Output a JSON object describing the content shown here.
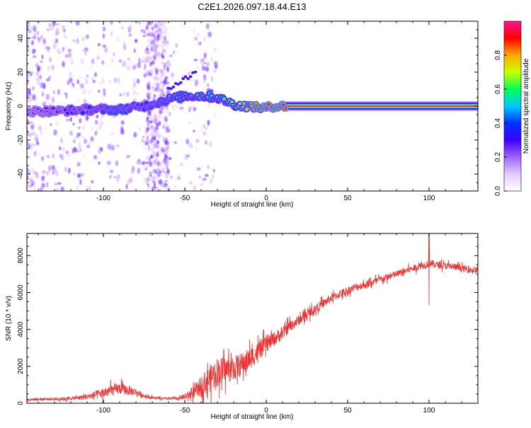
{
  "chart_data": [
    {
      "type": "heatmap",
      "title": "C2E1.2026.097.18.44.E13",
      "xlabel": "Height of straight line (km)",
      "ylabel": "Frequency (Hz)",
      "xlim": [
        -147,
        130
      ],
      "ylim": [
        -50,
        50
      ],
      "x_ticks": [
        -100,
        -50,
        0,
        50,
        100
      ],
      "x_tick_labels": [
        "-100",
        "-50",
        "0",
        "50",
        "100"
      ],
      "y_ticks": [
        -40,
        -20,
        0,
        20,
        40
      ],
      "y_tick_labels": [
        "-40",
        "-20",
        "0",
        "20",
        "40"
      ],
      "colorbar": {
        "label": "Normalized spectral amplitude",
        "range": [
          0,
          1
        ],
        "ticks": [
          0,
          0.2,
          0.4,
          0.6,
          0.8
        ],
        "tick_labels": [
          "0.0",
          "0.2",
          "0.4",
          "0.6",
          "0.8"
        ],
        "colors": [
          "#ffffff",
          "#e3c9ff",
          "#9f63ff",
          "#3d00ff",
          "#0033ff",
          "#00c8ff",
          "#00ff55",
          "#c8ff00",
          "#ffaa00",
          "#ff0000",
          "#ff1493"
        ]
      },
      "ridge": {
        "description": "Dominant spectral ridge: frequency offset vs height",
        "x": [
          -147,
          -130,
          -110,
          -90,
          -75,
          -60,
          -50,
          -40,
          -30,
          -25,
          -20,
          -15,
          -10,
          -5,
          0,
          5,
          10,
          20,
          50,
          100,
          130
        ],
        "freq": [
          -3,
          -3,
          -2,
          -2,
          0,
          4,
          6,
          6,
          5,
          3,
          1,
          0,
          0,
          -1,
          -1,
          0,
          0,
          0,
          0,
          0,
          0
        ],
        "amplitude": [
          0.25,
          0.3,
          0.4,
          0.45,
          0.4,
          0.5,
          0.55,
          0.6,
          0.55,
          0.65,
          0.7,
          0.75,
          0.8,
          0.85,
          0.9,
          0.95,
          0.95,
          0.95,
          0.95,
          0.95,
          0.95
        ]
      },
      "scatter_region": {
        "x_range": [
          -147,
          -30
        ],
        "amplitude_range": [
          0.02,
          0.25
        ]
      }
    },
    {
      "type": "line",
      "xlabel": "Height of straight line (km)",
      "ylabel": "SNR (10 * v/v)",
      "xlim": [
        -147,
        130
      ],
      "ylim": [
        0,
        9200
      ],
      "x_ticks": [
        -100,
        -50,
        0,
        50,
        100
      ],
      "x_tick_labels": [
        "-100",
        "-50",
        "0",
        "50",
        "100"
      ],
      "y_ticks": [
        0,
        2000,
        4000,
        6000,
        8000
      ],
      "y_tick_labels": [
        "0",
        "2000",
        "4000",
        "6000",
        "8000"
      ],
      "series": [
        {
          "name": "SNR",
          "color": "#ee3333",
          "x": [
            -147,
            -130,
            -120,
            -110,
            -100,
            -95,
            -90,
            -85,
            -80,
            -75,
            -70,
            -65,
            -60,
            -55,
            -50,
            -45,
            -40,
            -35,
            -30,
            -25,
            -20,
            -15,
            -10,
            -5,
            0,
            5,
            10,
            15,
            20,
            25,
            30,
            35,
            40,
            45,
            50,
            55,
            60,
            65,
            70,
            75,
            80,
            85,
            90,
            95,
            98,
            100,
            102,
            105,
            110,
            115,
            120,
            125,
            130
          ],
          "y": [
            200,
            230,
            260,
            350,
            550,
            700,
            800,
            700,
            600,
            400,
            300,
            250,
            250,
            260,
            350,
            550,
            900,
            1300,
            1700,
            1800,
            1900,
            2100,
            2400,
            2800,
            3200,
            3500,
            3800,
            4200,
            4500,
            4800,
            5100,
            5400,
            5700,
            5900,
            6100,
            6300,
            6400,
            6550,
            6700,
            6850,
            7000,
            7150,
            7300,
            7450,
            7500,
            7600,
            7550,
            7500,
            7450,
            7400,
            7300,
            7250,
            7200
          ],
          "noise": [
            80,
            90,
            120,
            200,
            350,
            400,
            400,
            350,
            250,
            150,
            100,
            80,
            80,
            100,
            200,
            400,
            700,
            900,
            1000,
            900,
            850,
            800,
            750,
            650,
            550,
            500,
            450,
            400,
            350,
            330,
            320,
            300,
            300,
            290,
            280,
            280,
            270,
            260,
            260,
            250,
            250,
            240,
            240,
            230,
            260,
            300,
            260,
            240,
            240,
            240,
            240,
            240,
            240
          ]
        }
      ],
      "spike": {
        "x": 100,
        "max": 9200,
        "min": 5300
      }
    }
  ]
}
